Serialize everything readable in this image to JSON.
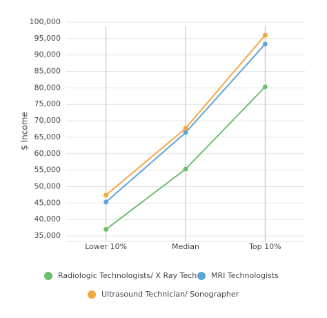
{
  "chart_data": {
    "type": "line",
    "ylabel": "$ Income",
    "categories": [
      "Lower 10%",
      "Median",
      "Top 10%"
    ],
    "series": [
      {
        "name": "Radiologic Technologists/ X Ray Tech",
        "color": "#6cbf6c",
        "values": [
          37000,
          55300,
          80300
        ]
      },
      {
        "name": "MRI Technologists",
        "color": "#5fa5d3",
        "values": [
          45300,
          66400,
          93300
        ]
      },
      {
        "name": "Ultrasound Technician/ Sonographer",
        "color": "#f4a742",
        "values": [
          47400,
          67700,
          96000
        ]
      }
    ],
    "ylim": [
      35000,
      100000
    ],
    "yticks": [
      {
        "value": 35000,
        "label": "35,000"
      },
      {
        "value": 40000,
        "label": "40,000"
      },
      {
        "value": 45000,
        "label": "45,000"
      },
      {
        "value": 50000,
        "label": "50,000"
      },
      {
        "value": 55000,
        "label": "55,000"
      },
      {
        "value": 60000,
        "label": "60,000"
      },
      {
        "value": 65000,
        "label": "65,000"
      },
      {
        "value": 70000,
        "label": "70,000"
      },
      {
        "value": 75000,
        "label": "75,000"
      },
      {
        "value": 80000,
        "label": "80,000"
      },
      {
        "value": 85000,
        "label": "85,000"
      },
      {
        "value": 90000,
        "label": "90,000"
      },
      {
        "value": 95000,
        "label": "95,000"
      },
      {
        "value": 100000,
        "label": "100,000"
      }
    ],
    "grid": true
  }
}
